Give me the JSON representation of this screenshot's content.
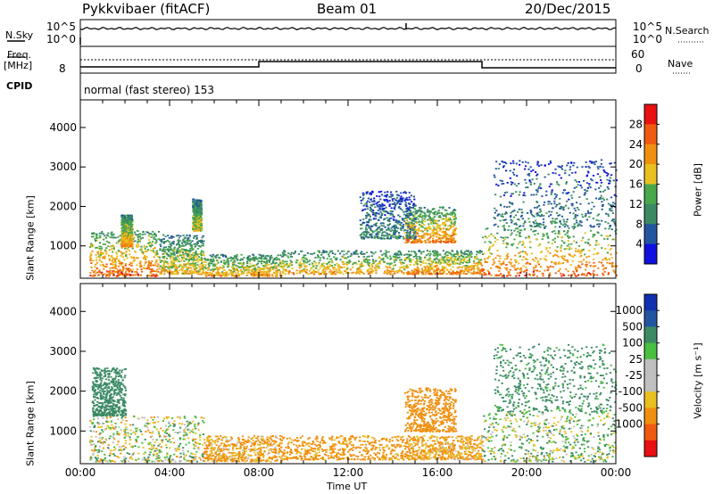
{
  "header": {
    "station": "Pykkvibaer (fitACF)",
    "beam": "Beam 01",
    "date": "20/Dec/2015"
  },
  "noise_panel": {
    "left_label": "N.Sky",
    "right_label": "N.Search",
    "left_ticks": [
      "10^5",
      "10^0"
    ],
    "right_ticks": [
      "10^5",
      "10^0"
    ]
  },
  "freq_panel": {
    "left_label_1": "Freq.",
    "left_label_2": "[MHz]",
    "left_tick": "8",
    "right_label": "Nave",
    "right_ticks": [
      "60",
      "0"
    ]
  },
  "cpid_panel": {
    "label": "CPID",
    "text": "normal (fast stereo) 153"
  },
  "colors": {
    "power_scale": [
      "#1010e0",
      "#2255a0",
      "#3b8a64",
      "#49a84a",
      "#e8c020",
      "#f09010",
      "#f05a10",
      "#e81010"
    ],
    "velocity_scale": [
      "#e81010",
      "#f05a10",
      "#f09010",
      "#e8c020",
      "#c0c0c0",
      "#bfbfbf",
      "#49c040",
      "#3b8a64",
      "#2255a0",
      "#1030b0"
    ]
  },
  "chart_data": [
    {
      "type": "heatmap",
      "name": "power",
      "ylabel": "Slant Range [km]",
      "ylim": [
        180,
        4700
      ],
      "xlim": [
        "00:00",
        "00:00"
      ],
      "y_ticks": [
        1000,
        2000,
        3000,
        4000
      ],
      "colorbar": {
        "label": "Power [dB]",
        "ticks": [
          4,
          8,
          12,
          16,
          20,
          24,
          28
        ],
        "range": [
          0,
          32
        ]
      },
      "blobs": [
        {
          "t": 0.4,
          "t2": 3.5,
          "r1": 250,
          "r2": 1400,
          "v": 26
        },
        {
          "t": 3.5,
          "t2": 5.5,
          "r1": 300,
          "r2": 1300,
          "v": 20
        },
        {
          "t": 5.5,
          "t2": 9,
          "r1": 250,
          "r2": 800,
          "v": 22
        },
        {
          "t": 9,
          "t2": 14.5,
          "r1": 300,
          "r2": 900,
          "v": 22
        },
        {
          "t": 14.5,
          "t2": 16.8,
          "r1": 1100,
          "r2": 2000,
          "v": 24
        },
        {
          "t": 14.5,
          "t2": 18,
          "r1": 300,
          "r2": 900,
          "v": 24
        },
        {
          "t": 18,
          "t2": 24,
          "r1": 250,
          "r2": 1500,
          "v": 26
        },
        {
          "t": 1.8,
          "t2": 2.3,
          "r1": 1000,
          "r2": 1800,
          "v": 22
        },
        {
          "t": 5,
          "t2": 5.4,
          "r1": 1400,
          "r2": 2200,
          "v": 18
        },
        {
          "t": 12.5,
          "t2": 15,
          "r1": 1200,
          "r2": 2400,
          "v": 10
        },
        {
          "t": 18.5,
          "t2": 24,
          "r1": 1500,
          "r2": 3200,
          "v": 10
        }
      ]
    },
    {
      "type": "heatmap",
      "name": "velocity",
      "ylabel": "Slant Range [km]",
      "xlabel": "Time UT",
      "ylim": [
        180,
        4700
      ],
      "y_ticks": [
        1000,
        2000,
        3000,
        4000
      ],
      "x_ticks": [
        "00:00",
        "04:00",
        "08:00",
        "12:00",
        "16:00",
        "20:00",
        "00:00"
      ],
      "colorbar": {
        "label": "Velocity [m s⁻¹]",
        "ticks": [
          1000,
          500,
          100,
          25,
          -25,
          -100,
          -500,
          -1000
        ]
      },
      "blobs": [
        {
          "t": 0.4,
          "t2": 5.5,
          "r1": 250,
          "r2": 1400,
          "v": 0
        },
        {
          "t": 5.5,
          "t2": 9,
          "r1": 250,
          "r2": 900,
          "v": -150
        },
        {
          "t": 9,
          "t2": 14.5,
          "r1": 300,
          "r2": 900,
          "v": -200
        },
        {
          "t": 14.5,
          "t2": 16.8,
          "r1": 1000,
          "r2": 2100,
          "v": -300
        },
        {
          "t": 14.5,
          "t2": 18,
          "r1": 300,
          "r2": 900,
          "v": -150
        },
        {
          "t": 18,
          "t2": 24,
          "r1": 250,
          "r2": 1500,
          "v": 50
        },
        {
          "t": 18.5,
          "t2": 24,
          "r1": 1500,
          "r2": 3200,
          "v": 200
        },
        {
          "t": 0.5,
          "t2": 2,
          "r1": 1400,
          "r2": 2600,
          "v": 300
        }
      ]
    }
  ]
}
